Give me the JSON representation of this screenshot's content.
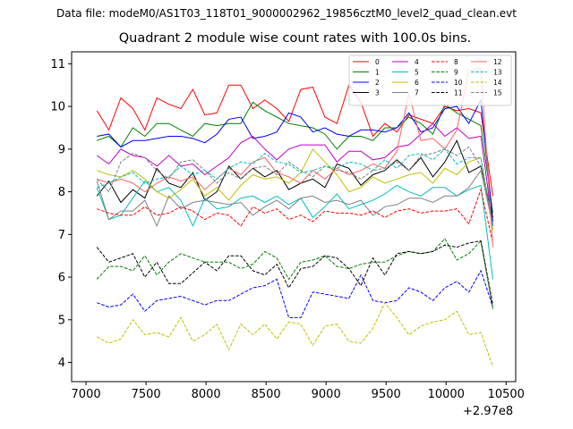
{
  "header": {
    "suptitle": "Data file: modeM0/AS1T03_118T01_9000002962_19856cztM0_level2_quad_clean.evt"
  },
  "chart_data": {
    "type": "line",
    "title": "Quadrant 2 module wise count rates with 100.0s bins.",
    "xlabel": "",
    "ylabel": "",
    "x_offset_label": "+2.97e8",
    "xlim": [
      6880,
      10580
    ],
    "ylim": [
      3.55,
      11.28
    ],
    "x_ticks": [
      7000,
      7500,
      8000,
      8500,
      9000,
      9500,
      10000,
      10500
    ],
    "x_tick_labels": [
      "7000",
      "7500",
      "8000",
      "8500",
      "9000",
      "9500",
      "10000",
      "10500"
    ],
    "y_ticks": [
      4,
      5,
      6,
      7,
      8,
      9,
      10,
      11
    ],
    "y_tick_labels": [
      "4",
      "5",
      "6",
      "7",
      "8",
      "9",
      "10",
      "11"
    ],
    "x": [
      7090,
      7190,
      7290,
      7390,
      7490,
      7590,
      7690,
      7790,
      7890,
      7990,
      8090,
      8190,
      8290,
      8390,
      8490,
      8590,
      8690,
      8790,
      8890,
      8990,
      9090,
      9190,
      9290,
      9390,
      9490,
      9590,
      9690,
      9790,
      9890,
      9990,
      10090,
      10190,
      10290,
      10390
    ],
    "legend": {
      "location": "top-right",
      "columns": 4
    },
    "series": [
      {
        "name": "0",
        "color": "#ff0000",
        "style": "solid",
        "values": [
          9.9,
          9.45,
          10.2,
          9.95,
          9.45,
          10.2,
          10.05,
          9.95,
          10.4,
          9.8,
          9.85,
          10.5,
          10.5,
          9.95,
          10.15,
          9.95,
          9.65,
          10.4,
          10.45,
          9.75,
          9.6,
          10.5,
          10.1,
          9.3,
          9.6,
          9.4,
          9.8,
          9.7,
          9.6,
          10.0,
          9.9,
          9.95,
          9.85,
          7.9
        ]
      },
      {
        "name": "1",
        "color": "#008000",
        "style": "solid",
        "values": [
          9.2,
          9.3,
          9.05,
          9.5,
          9.3,
          9.6,
          9.6,
          9.45,
          9.3,
          9.6,
          9.55,
          9.6,
          9.6,
          10.1,
          9.9,
          9.75,
          9.6,
          9.55,
          9.5,
          9.35,
          9.0,
          9.3,
          9.3,
          9.2,
          9.5,
          9.5,
          9.75,
          9.6,
          9.35,
          10.05,
          9.85,
          9.7,
          9.55,
          7.5
        ]
      },
      {
        "name": "2",
        "color": "#0000ff",
        "style": "solid",
        "values": [
          9.3,
          9.35,
          9.05,
          9.2,
          9.2,
          9.25,
          9.3,
          9.3,
          9.25,
          9.15,
          9.35,
          9.7,
          9.75,
          9.25,
          9.3,
          9.4,
          9.85,
          9.75,
          9.4,
          9.5,
          9.35,
          9.3,
          9.45,
          9.45,
          9.4,
          9.5,
          9.85,
          9.4,
          9.5,
          9.95,
          10.0,
          9.6,
          10.15,
          7.3
        ]
      },
      {
        "name": "3",
        "color": "#000000",
        "style": "solid",
        "values": [
          7.9,
          8.25,
          7.75,
          8.05,
          7.85,
          8.55,
          8.2,
          8.1,
          8.45,
          7.8,
          8.0,
          8.6,
          8.3,
          8.55,
          8.35,
          8.5,
          8.05,
          8.2,
          8.3,
          8.1,
          8.65,
          8.55,
          8.15,
          8.4,
          8.5,
          8.75,
          8.5,
          8.8,
          8.35,
          8.7,
          9.2,
          8.45,
          8.6,
          7.4
        ]
      },
      {
        "name": "4",
        "color": "#bf00bf",
        "style": "solid",
        "values": [
          8.85,
          8.65,
          9.0,
          8.85,
          8.8,
          8.6,
          8.85,
          8.6,
          8.65,
          8.4,
          8.6,
          8.8,
          9.15,
          9.3,
          9.0,
          8.75,
          9.0,
          9.1,
          9.1,
          9.1,
          8.7,
          8.95,
          8.95,
          8.75,
          8.8,
          9.05,
          9.1,
          9.35,
          9.6,
          9.3,
          9.5,
          9.25,
          9.3,
          7.2
        ]
      },
      {
        "name": "5",
        "color": "#00bfbf",
        "style": "solid",
        "values": [
          8.1,
          7.35,
          7.45,
          7.85,
          8.25,
          8.0,
          8.1,
          7.8,
          7.2,
          7.85,
          7.6,
          7.65,
          7.85,
          7.9,
          7.75,
          7.9,
          7.7,
          7.85,
          7.4,
          7.65,
          7.95,
          7.6,
          7.7,
          7.8,
          7.95,
          8.15,
          8.0,
          7.9,
          8.1,
          8.1,
          7.9,
          8.05,
          8.15,
          5.95
        ]
      },
      {
        "name": "6",
        "color": "#bfbf00",
        "style": "solid",
        "values": [
          8.5,
          8.4,
          8.35,
          8.5,
          8.3,
          8.0,
          7.85,
          8.05,
          8.3,
          7.9,
          8.1,
          7.8,
          8.15,
          8.4,
          8.3,
          8.35,
          8.2,
          8.45,
          9.0,
          8.7,
          8.4,
          8.0,
          8.1,
          8.35,
          8.2,
          8.3,
          8.4,
          8.45,
          8.2,
          8.55,
          8.4,
          8.7,
          8.8,
          7.1
        ]
      },
      {
        "name": "7",
        "color": "#808080",
        "style": "solid",
        "values": [
          8.25,
          7.35,
          7.55,
          7.55,
          7.8,
          7.2,
          7.9,
          7.6,
          7.75,
          7.8,
          7.75,
          7.7,
          7.75,
          7.45,
          7.65,
          7.8,
          7.6,
          7.85,
          7.9,
          7.75,
          7.8,
          7.7,
          7.8,
          7.45,
          7.65,
          7.7,
          7.85,
          7.85,
          7.75,
          7.9,
          7.9,
          8.1,
          8.5,
          7.2
        ]
      },
      {
        "name": "8",
        "color": "#ff0000",
        "style": "dashed",
        "values": [
          7.6,
          7.5,
          7.45,
          7.45,
          7.65,
          7.45,
          7.5,
          7.65,
          7.55,
          7.35,
          7.5,
          7.45,
          7.2,
          7.65,
          7.5,
          7.6,
          7.35,
          7.45,
          7.3,
          7.55,
          7.5,
          7.5,
          7.45,
          7.55,
          7.4,
          7.55,
          7.6,
          7.5,
          7.55,
          7.55,
          7.6,
          7.25,
          8.05,
          6.8
        ]
      },
      {
        "name": "9",
        "color": "#008000",
        "style": "dashed",
        "values": [
          5.95,
          6.25,
          6.25,
          6.15,
          6.5,
          6.05,
          6.35,
          6.55,
          6.45,
          6.35,
          6.35,
          6.35,
          6.2,
          6.3,
          6.6,
          6.45,
          5.95,
          6.35,
          6.4,
          6.5,
          6.25,
          6.2,
          6.3,
          6.35,
          6.35,
          6.5,
          6.6,
          6.55,
          6.6,
          6.9,
          6.4,
          6.55,
          6.85,
          5.25
        ]
      },
      {
        "name": "10",
        "color": "#0000ff",
        "style": "dashed",
        "values": [
          5.4,
          5.3,
          5.35,
          5.6,
          5.2,
          5.45,
          5.5,
          5.55,
          5.45,
          5.35,
          5.45,
          5.45,
          5.6,
          5.75,
          5.8,
          5.95,
          5.05,
          5.05,
          5.65,
          5.6,
          5.55,
          5.5,
          6.05,
          5.45,
          5.4,
          5.45,
          5.75,
          5.65,
          5.45,
          5.75,
          5.9,
          5.65,
          6.15,
          5.3
        ]
      },
      {
        "name": "11",
        "color": "#000000",
        "style": "dashed",
        "values": [
          6.7,
          6.35,
          6.45,
          6.55,
          6.0,
          6.35,
          5.85,
          5.85,
          6.1,
          6.35,
          6.15,
          6.5,
          6.5,
          6.15,
          6.05,
          6.3,
          5.75,
          6.2,
          6.25,
          6.5,
          6.45,
          6.2,
          5.8,
          6.45,
          6.05,
          6.55,
          6.6,
          6.55,
          6.6,
          6.75,
          6.7,
          6.8,
          6.85,
          5.35
        ]
      },
      {
        "name": "12",
        "color": "#ff6060",
        "style": "solid",
        "values": [
          8.3,
          8.2,
          8.3,
          8.2,
          8.0,
          8.2,
          8.35,
          8.25,
          8.35,
          8.05,
          8.3,
          8.55,
          8.4,
          8.7,
          8.8,
          8.45,
          8.35,
          8.2,
          8.5,
          8.3,
          8.55,
          8.4,
          8.5,
          8.65,
          8.55,
          8.95,
          10.3,
          9.2,
          9.25,
          9.0,
          9.45,
          10.85,
          10.9,
          6.7
        ]
      },
      {
        "name": "13",
        "color": "#00bfbf",
        "style": "dashed",
        "values": [
          8.1,
          8.2,
          8.35,
          8.45,
          8.2,
          8.3,
          8.35,
          8.6,
          8.4,
          8.5,
          8.3,
          8.55,
          8.7,
          8.65,
          8.9,
          8.7,
          8.65,
          8.45,
          8.5,
          8.6,
          8.55,
          8.7,
          8.65,
          8.5,
          8.75,
          8.55,
          8.85,
          8.9,
          8.75,
          9.0,
          8.65,
          8.8,
          8.8,
          7.2
        ]
      },
      {
        "name": "14",
        "color": "#bfbf00",
        "style": "dashed",
        "values": [
          4.6,
          4.45,
          4.55,
          5.0,
          4.65,
          4.7,
          4.6,
          5.05,
          4.5,
          4.65,
          4.9,
          4.3,
          4.9,
          4.65,
          4.9,
          4.55,
          4.95,
          4.9,
          4.4,
          4.85,
          4.9,
          4.5,
          4.45,
          4.8,
          5.4,
          5.05,
          4.65,
          4.85,
          4.95,
          5.0,
          5.2,
          4.65,
          4.7,
          3.9
        ]
      },
      {
        "name": "15",
        "color": "#808080",
        "style": "dashed",
        "values": [
          8.3,
          8.0,
          8.7,
          8.9,
          8.8,
          8.5,
          8.3,
          8.7,
          8.75,
          8.5,
          8.2,
          8.45,
          8.3,
          8.55,
          8.6,
          8.4,
          8.7,
          8.5,
          8.35,
          8.6,
          8.5,
          8.45,
          8.3,
          8.5,
          8.55,
          8.7,
          8.5,
          8.85,
          8.9,
          9.0,
          8.85,
          9.05,
          8.6,
          7.25
        ]
      }
    ]
  }
}
